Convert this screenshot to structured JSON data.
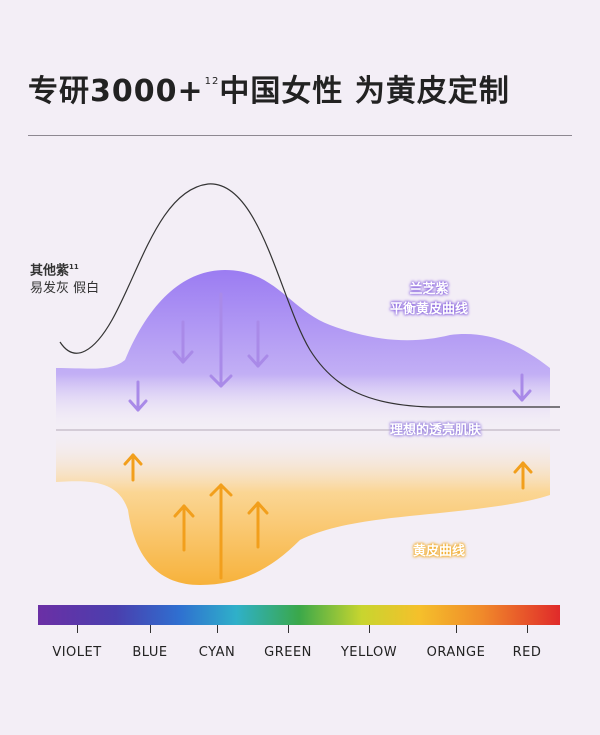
{
  "title": {
    "main": "专研3000+",
    "sup": "12",
    "rest": "中国女性 为黄皮定制"
  },
  "labels": {
    "other_line1": "其他紫",
    "other_sup": "11",
    "other_line2": "易发灰 假白",
    "purple_line1": "兰芝紫",
    "purple_line2": "平衡黄皮曲线",
    "ideal": "理想的透亮肌肤",
    "yellow": "黄皮曲线"
  },
  "spectrum": [
    "VIOLET",
    "BLUE",
    "CYAN",
    "GREEN",
    "YELLOW",
    "ORANGE",
    "RED"
  ],
  "colors": {
    "purple": "#9a7cf0",
    "yellow": "#f7b63a",
    "violet_arrow": "#a98ae8",
    "orange_arrow": "#f29f1c"
  },
  "icons": [
    "down-arrow-icon",
    "up-arrow-icon"
  ]
}
